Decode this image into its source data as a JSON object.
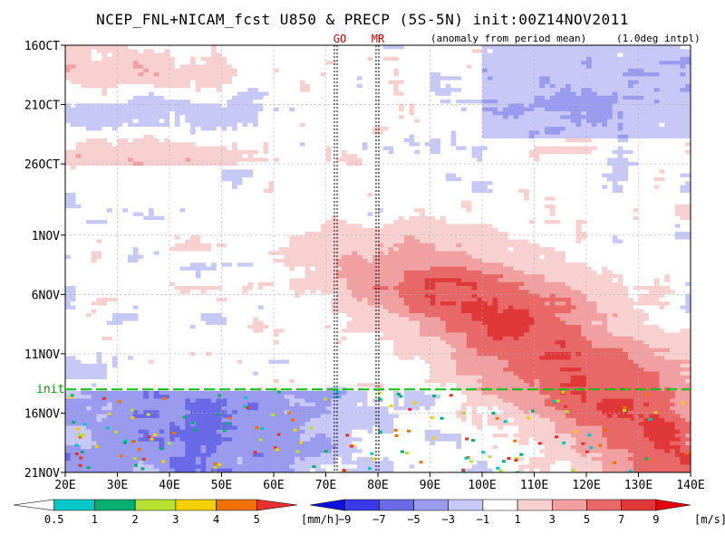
{
  "chart_data": {
    "type": "heatmap",
    "title": "NCEP_FNL+NICAM_fcst U850 & PRECP (5S-5N) init:00Z14NOV2011",
    "subtitle_left": "(anomaly from period mean)",
    "subtitle_right": "(1.0deg intpl)",
    "x_ticks": [
      "20E",
      "30E",
      "40E",
      "50E",
      "60E",
      "70E",
      "80E",
      "90E",
      "100E",
      "110E",
      "120E",
      "130E",
      "140E"
    ],
    "x_tick_values": [
      20,
      30,
      40,
      50,
      60,
      70,
      80,
      90,
      100,
      110,
      120,
      130,
      140
    ],
    "xlim": [
      20,
      140
    ],
    "y_ticks": [
      "16OCT",
      "21OCT",
      "26OCT",
      "1NOV",
      "6NOV",
      "11NOV",
      "16NOV",
      "21NOV"
    ],
    "y_tick_days": [
      0,
      5,
      10,
      16,
      21,
      26,
      31,
      36
    ],
    "ylim_days": [
      0,
      36
    ],
    "init_label": "init",
    "init_day": 29,
    "vertical_markers": [
      {
        "label": "GO",
        "x": 72
      },
      {
        "label": "MR",
        "x": 80
      }
    ],
    "u850_colorbar": {
      "levels": [
        "−9",
        "−7",
        "−5",
        "−3",
        "−1",
        "1",
        "3",
        "5",
        "7",
        "9"
      ],
      "unit": "[m/s]",
      "colors": [
        "#1010e0",
        "#3a3ae8",
        "#6a6ae8",
        "#9a9aee",
        "#c8c8f6",
        "#ffffff",
        "#f8d0d0",
        "#f0a0a0",
        "#e86868",
        "#e03838",
        "#e00010"
      ]
    },
    "precip_colorbar": {
      "levels": [
        "0.5",
        "1",
        "2",
        "3",
        "4",
        "5"
      ],
      "unit": "[mm/h]",
      "colors": [
        "#ffffff",
        "#00c8c8",
        "#00b070",
        "#b8e030",
        "#f0d000",
        "#f07000",
        "#e83030"
      ]
    },
    "features": [
      {
        "name": "westerly anomaly (positive U850) propagating eastward",
        "x_range": [
          70,
          140
        ],
        "day_range": [
          15,
          36
        ],
        "sign": "positive"
      },
      {
        "name": "easterly anomaly west of 70E after init",
        "x_range": [
          20,
          80
        ],
        "day_range": [
          29,
          36
        ],
        "sign": "negative"
      }
    ]
  }
}
